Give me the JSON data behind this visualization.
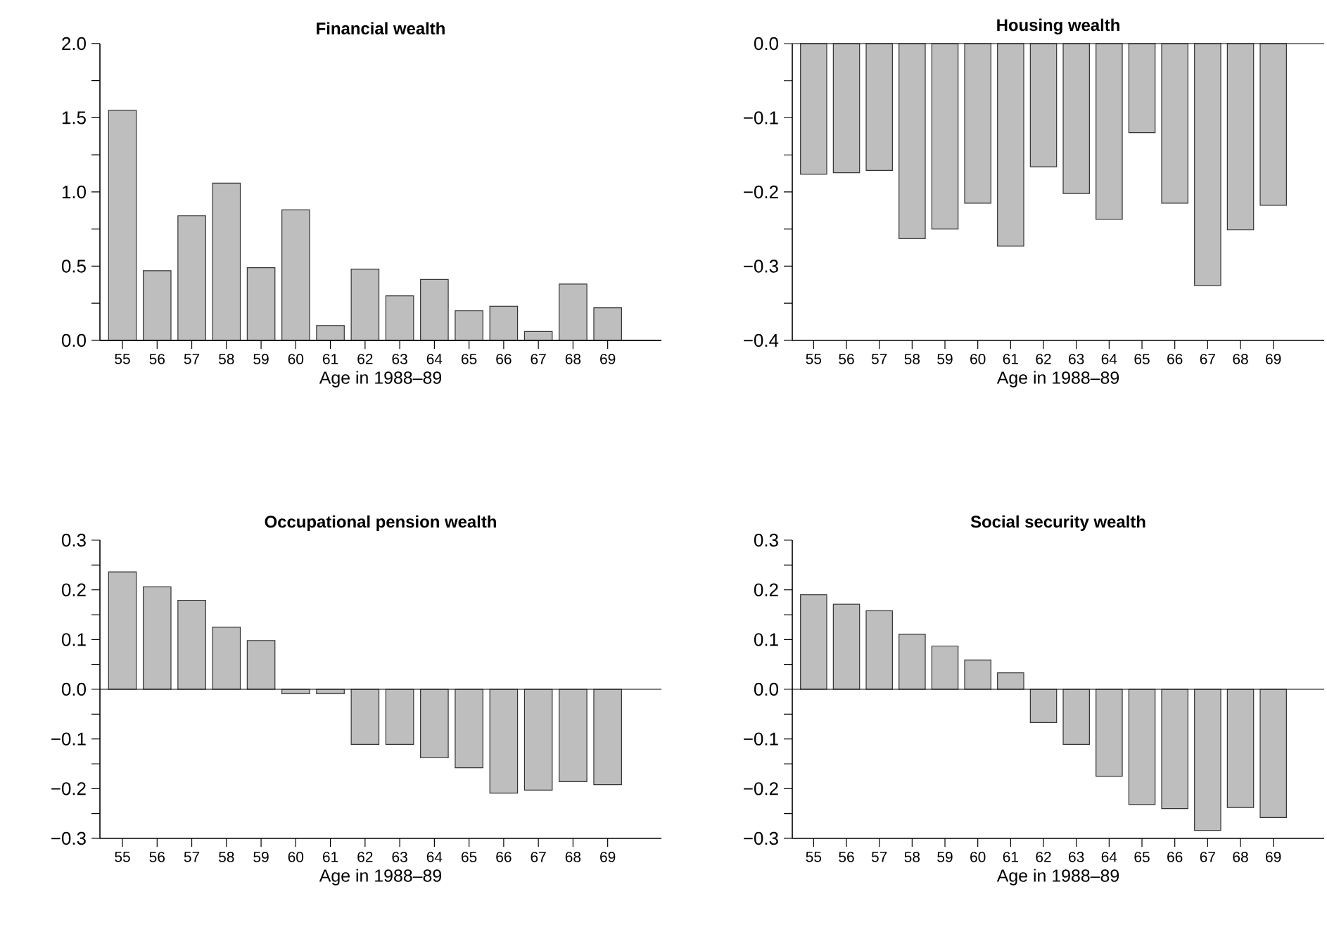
{
  "chart_data": [
    {
      "type": "bar",
      "title": "Financial wealth",
      "xlabel": "Age in 1988–89",
      "categories": [
        "55",
        "56",
        "57",
        "58",
        "59",
        "60",
        "61",
        "62",
        "63",
        "64",
        "65",
        "66",
        "67",
        "68",
        "69"
      ],
      "values": [
        1.55,
        0.47,
        0.84,
        1.06,
        0.49,
        0.88,
        0.1,
        0.48,
        0.3,
        0.41,
        0.2,
        0.23,
        0.06,
        0.38,
        0.22
      ],
      "color": "#bebebe",
      "ylim": [
        0,
        2.0
      ],
      "yticks": [
        {
          "value": 0,
          "label": "0.0"
        },
        {
          "value": 0.5,
          "label": "0.5"
        },
        {
          "value": 1.0,
          "label": "1.0"
        },
        {
          "value": 1.5,
          "label": "1.5"
        },
        {
          "value": 2.0,
          "label": "2.0"
        }
      ]
    },
    {
      "type": "bar",
      "title": "Housing wealth",
      "xlabel": "Age in 1988–89",
      "categories": [
        "55",
        "56",
        "57",
        "58",
        "59",
        "60",
        "61",
        "62",
        "63",
        "64",
        "65",
        "66",
        "67",
        "68",
        "69"
      ],
      "values": [
        -0.176,
        -0.174,
        -0.171,
        -0.263,
        -0.25,
        -0.215,
        -0.273,
        -0.166,
        -0.202,
        -0.237,
        -0.12,
        -0.215,
        -0.326,
        -0.251,
        -0.218
      ],
      "color": "#bebebe",
      "ylim": [
        -0.4,
        0
      ],
      "yticks": [
        {
          "value": -0.4,
          "label": "−0.4"
        },
        {
          "value": -0.3,
          "label": "−0.3"
        },
        {
          "value": -0.2,
          "label": "−0.2"
        },
        {
          "value": -0.1,
          "label": "−0.1"
        },
        {
          "value": 0,
          "label": "0.0"
        }
      ]
    },
    {
      "type": "bar",
      "title": "Occupational pension wealth",
      "xlabel": "Age in 1988–89",
      "categories": [
        "55",
        "56",
        "57",
        "58",
        "59",
        "60",
        "61",
        "62",
        "63",
        "64",
        "65",
        "66",
        "67",
        "68",
        "69"
      ],
      "values": [
        0.236,
        0.206,
        0.179,
        0.125,
        0.098,
        -0.009,
        -0.009,
        -0.111,
        -0.111,
        -0.138,
        -0.158,
        -0.209,
        -0.203,
        -0.186,
        -0.192
      ],
      "color": "#bebebe",
      "ylim": [
        -0.3,
        0.3
      ],
      "yticks": [
        {
          "value": -0.3,
          "label": "−0.3"
        },
        {
          "value": -0.2,
          "label": "−0.2"
        },
        {
          "value": -0.1,
          "label": "−0.1"
        },
        {
          "value": 0,
          "label": "0.0"
        },
        {
          "value": 0.1,
          "label": "0.1"
        },
        {
          "value": 0.2,
          "label": "0.2"
        },
        {
          "value": 0.3,
          "label": "0.3"
        }
      ]
    },
    {
      "type": "bar",
      "title": "Social security wealth",
      "xlabel": "Age in 1988–89",
      "categories": [
        "55",
        "56",
        "57",
        "58",
        "59",
        "60",
        "61",
        "62",
        "63",
        "64",
        "65",
        "66",
        "67",
        "68",
        "69"
      ],
      "values": [
        0.19,
        0.171,
        0.158,
        0.111,
        0.087,
        0.059,
        0.033,
        -0.067,
        -0.111,
        -0.175,
        -0.232,
        -0.24,
        -0.284,
        -0.238,
        -0.258
      ],
      "color": "#bebebe",
      "ylim": [
        -0.3,
        0.3
      ],
      "yticks": [
        {
          "value": -0.3,
          "label": "−0.3"
        },
        {
          "value": -0.2,
          "label": "−0.2"
        },
        {
          "value": -0.1,
          "label": "−0.1"
        },
        {
          "value": 0,
          "label": "0.0"
        },
        {
          "value": 0.1,
          "label": "0.1"
        },
        {
          "value": 0.2,
          "label": "0.2"
        },
        {
          "value": 0.3,
          "label": "0.3"
        }
      ]
    }
  ]
}
